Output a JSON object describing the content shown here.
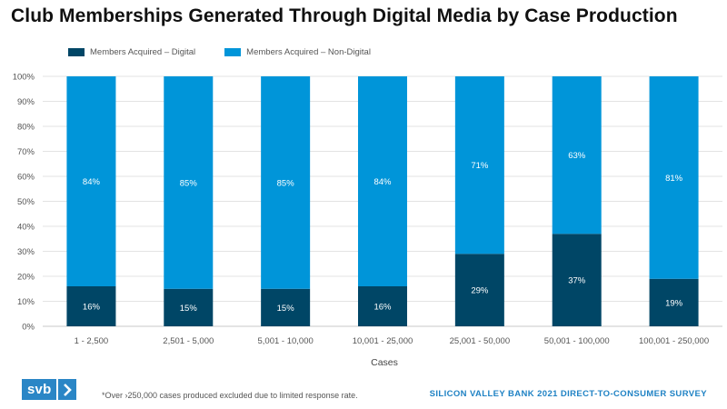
{
  "chart_data": {
    "type": "bar",
    "stacked": true,
    "title": "Club Memberships Generated Through Digital Media by Case Production",
    "xlabel": "Cases",
    "ylabel": "",
    "ylim": [
      0,
      100
    ],
    "yticks": [
      "0%",
      "10%",
      "20%",
      "30%",
      "40%",
      "50%",
      "60%",
      "70%",
      "80%",
      "90%",
      "100%"
    ],
    "categories": [
      "1 - 2,500",
      "2,501 - 5,000",
      "5,001 - 10,000",
      "10,001 - 25,000",
      "25,001 - 50,000",
      "50,001 - 100,000",
      "100,001 - 250,000"
    ],
    "series": [
      {
        "name": "Members Acquired – Digital",
        "color": "#004666",
        "values": [
          16,
          15,
          15,
          16,
          29,
          37,
          19
        ],
        "labels": [
          "16%",
          "15%",
          "15%",
          "16%",
          "29%",
          "37%",
          "19%"
        ]
      },
      {
        "name": "Members Acquired – Non-Digital",
        "color": "#0095d9",
        "values": [
          84,
          85,
          85,
          84,
          71,
          63,
          81
        ],
        "labels": [
          "84%",
          "85%",
          "85%",
          "84%",
          "71%",
          "63%",
          "81%"
        ]
      }
    ],
    "legend_position": "top-left",
    "grid": true
  },
  "footer": {
    "logo_text": "svb",
    "footnote": "*Over ›250,000 cases produced excluded due to limited response rate.",
    "source": "SILICON VALLEY BANK 2021 DIRECT-TO-CONSUMER SURVEY"
  },
  "icons": {
    "logo_chevron": "chevron-right-icon"
  }
}
